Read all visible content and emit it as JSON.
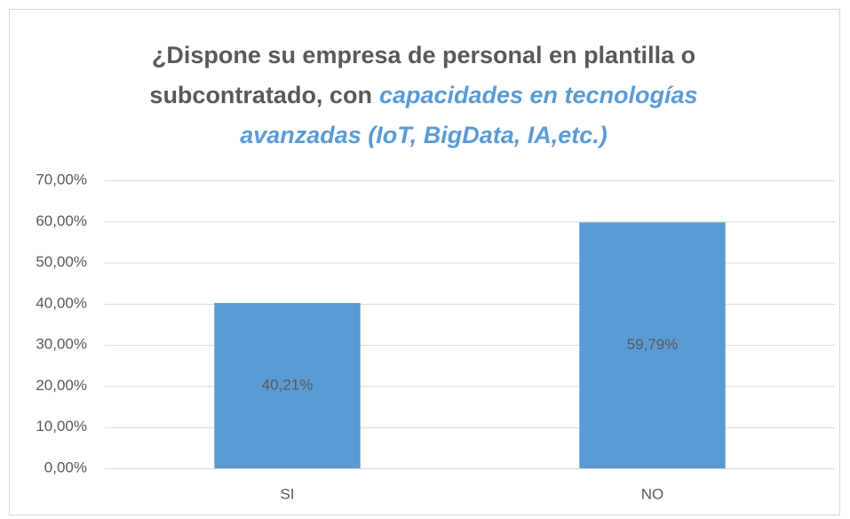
{
  "chart_data": {
    "type": "bar",
    "title": [
      "¿Dispone su empresa de personal en plantilla o",
      "subcontratado, con",
      "capacidades en tecnologías",
      "avanzadas (IoT, BigData, IA,etc.)"
    ],
    "categories": [
      "SI",
      "NO"
    ],
    "values": [
      40.21,
      59.79
    ],
    "value_labels": [
      "40,21%",
      "59,79%"
    ],
    "color": "#5b9bd5",
    "ylim": [
      0,
      70
    ],
    "yticks": [
      {
        "value": 0,
        "label": "0,00%"
      },
      {
        "value": 10,
        "label": "10,00%"
      },
      {
        "value": 20,
        "label": "20,00%"
      },
      {
        "value": 30,
        "label": "30,00%"
      },
      {
        "value": 40,
        "label": "40,00%"
      },
      {
        "value": 50,
        "label": "50,00%"
      },
      {
        "value": 60,
        "label": "60,00%"
      },
      {
        "value": 70,
        "label": "70,00%"
      }
    ],
    "grid": true
  }
}
